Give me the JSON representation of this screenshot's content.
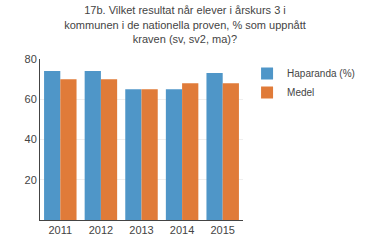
{
  "chart_data": {
    "type": "bar",
    "title": "17b. Vilket resultat når elever i årskurs 3 i\nkommunen i de nationella proven, % som uppnått\nkraven (sv, sv2, ma)?",
    "categories": [
      "2011",
      "2012",
      "2013",
      "2014",
      "2015"
    ],
    "series": [
      {
        "name": "Haparanda (%)",
        "color": "#4f96c8",
        "values": [
          74,
          74,
          65,
          65,
          73
        ]
      },
      {
        "name": "Medel",
        "color": "#e07b39",
        "values": [
          70,
          70,
          65,
          68,
          68
        ]
      }
    ],
    "ylim": [
      0,
      80
    ],
    "yticks": [
      20,
      40,
      60,
      80
    ],
    "grid": true,
    "legend": "upper right"
  }
}
